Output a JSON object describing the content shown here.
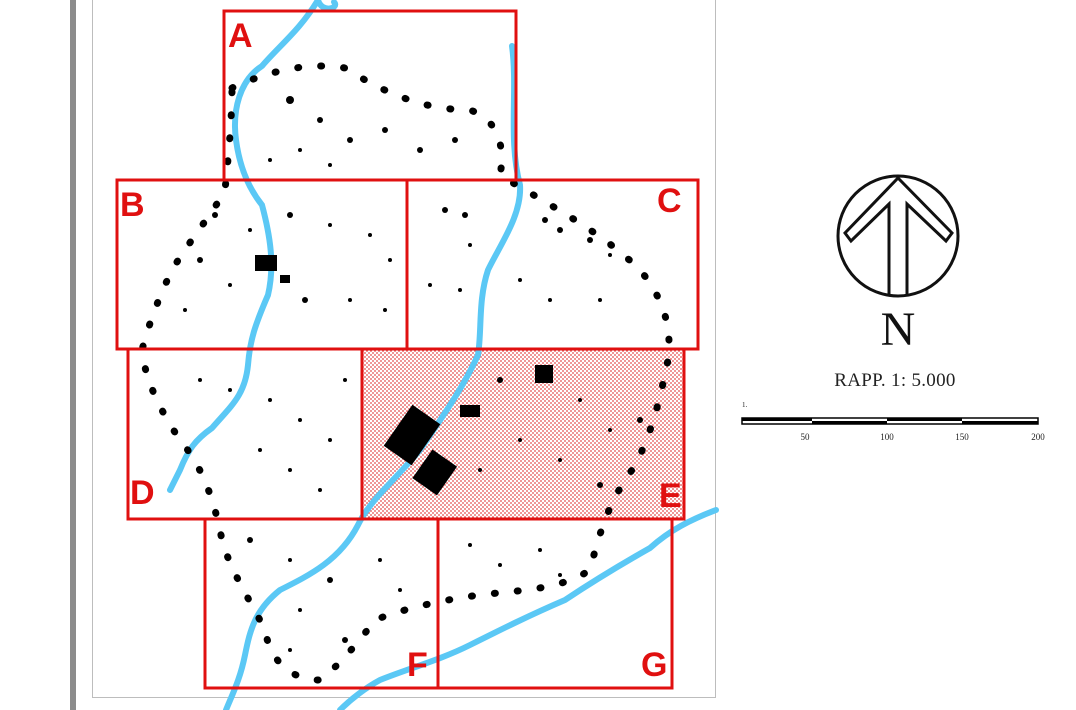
{
  "sheets": [
    {
      "label": "A",
      "highlighted": false
    },
    {
      "label": "B",
      "highlighted": false
    },
    {
      "label": "C",
      "highlighted": false
    },
    {
      "label": "D",
      "highlighted": false
    },
    {
      "label": "E",
      "highlighted": true
    },
    {
      "label": "F",
      "highlighted": false
    },
    {
      "label": "G",
      "highlighted": false
    }
  ],
  "north": {
    "letter": "N",
    "icon": "north-arrow-icon"
  },
  "scale": {
    "ratio_text": "RAPP.   1: 5.000",
    "zero_label": "1.",
    "tick_labels": [
      "50",
      "100",
      "150",
      "200"
    ]
  },
  "colors": {
    "sheet_border": "#e01010",
    "river": "#5bc8f5",
    "buildings": "#000000",
    "highlight_pattern": "#e34a4a"
  }
}
